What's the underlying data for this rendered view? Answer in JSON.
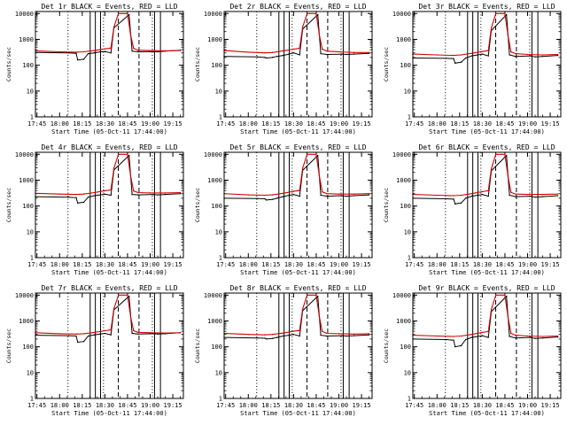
{
  "figure": {
    "background": "#ffffff",
    "axis_color": "#000000",
    "events_color": "#000000",
    "lld_color": "#d40000",
    "xlabel": "Start Time (05-Oct-11 17:44:00)",
    "ylabel": "Counts/sec"
  },
  "chart_data": [
    {
      "type": "line",
      "title": "Det 1r BLACK = Events, RED = LLD",
      "xlabel": "Start Time (05-Oct-11 17:44:00)",
      "ylabel": "Counts/sec",
      "y_scale": "log",
      "ylim": [
        1,
        12000
      ],
      "xlim": [
        "17:44",
        "19:22"
      ],
      "xticks": [
        "17:45",
        "18:00",
        "18:15",
        "18:30",
        "18:45",
        "19:00",
        "19:15"
      ],
      "yticks": [
        "1",
        "10",
        "100",
        "1000",
        "10000"
      ],
      "series": [
        {
          "name": "Events",
          "color": "#000000",
          "x": [
            "17:44",
            "18:06",
            "18:11",
            "18:12",
            "18:16",
            "18:19",
            "18:23",
            "18:27",
            "18:30",
            "18:34",
            "18:36",
            "18:46",
            "18:48",
            "18:52",
            "19:02",
            "19:05",
            "19:10",
            "19:20"
          ],
          "y": [
            310,
            300,
            290,
            160,
            170,
            280,
            300,
            330,
            340,
            300,
            2800,
            9000,
            350,
            330,
            340,
            330,
            350,
            380
          ]
        },
        {
          "name": "LLD",
          "color": "#d40000",
          "x": [
            "17:44",
            "18:00",
            "18:11",
            "18:16",
            "18:23",
            "18:30",
            "18:34",
            "18:36",
            "18:39",
            "18:45",
            "18:47",
            "18:49",
            "18:52",
            "19:00",
            "19:10",
            "19:20"
          ],
          "y": [
            360,
            330,
            320,
            330,
            370,
            430,
            460,
            3000,
            10000,
            10000,
            1500,
            450,
            380,
            370,
            360,
            370
          ]
        }
      ]
    },
    {
      "type": "line",
      "title": "Det 2r BLACK = Events, RED = LLD",
      "xlabel": "Start Time (05-Oct-11 17:44:00)",
      "ylabel": "Counts/sec",
      "y_scale": "log",
      "ylim": [
        1,
        12000
      ],
      "xlim": [
        "17:44",
        "19:22"
      ],
      "xticks": [
        "17:45",
        "18:00",
        "18:15",
        "18:30",
        "18:45",
        "19:00",
        "19:15"
      ],
      "yticks": [
        "1",
        "10",
        "100",
        "1000",
        "10000"
      ],
      "series": [
        {
          "name": "Events",
          "color": "#000000",
          "x": [
            "17:44",
            "18:06",
            "18:11",
            "18:12",
            "18:16",
            "18:19",
            "18:23",
            "18:27",
            "18:30",
            "18:34",
            "18:36",
            "18:46",
            "18:48",
            "18:52",
            "19:02",
            "19:05",
            "19:10",
            "19:20"
          ],
          "y": [
            220,
            210,
            200,
            190,
            200,
            220,
            240,
            270,
            300,
            250,
            2500,
            9000,
            280,
            260,
            270,
            260,
            270,
            290
          ]
        },
        {
          "name": "LLD",
          "color": "#d40000",
          "x": [
            "17:44",
            "18:00",
            "18:11",
            "18:16",
            "18:23",
            "18:30",
            "18:34",
            "18:36",
            "18:39",
            "18:45",
            "18:47",
            "18:49",
            "18:52",
            "19:00",
            "19:10",
            "19:20"
          ],
          "y": [
            370,
            320,
            300,
            310,
            360,
            420,
            450,
            3000,
            10000,
            10000,
            1500,
            420,
            350,
            330,
            310,
            310
          ]
        }
      ]
    },
    {
      "type": "line",
      "title": "Det 3r BLACK = Events, RED = LLD",
      "xlabel": "Start Time (05-Oct-11 17:44:00)",
      "ylabel": "Counts/sec",
      "y_scale": "log",
      "ylim": [
        1,
        12000
      ],
      "xlim": [
        "17:44",
        "19:22"
      ],
      "xticks": [
        "17:45",
        "18:00",
        "18:15",
        "18:30",
        "18:45",
        "19:00",
        "19:15"
      ],
      "yticks": [
        "1",
        "10",
        "100",
        "1000",
        "10000"
      ],
      "series": [
        {
          "name": "Events",
          "color": "#000000",
          "x": [
            "17:44",
            "18:06",
            "18:11",
            "18:12",
            "18:16",
            "18:19",
            "18:23",
            "18:27",
            "18:30",
            "18:34",
            "18:36",
            "18:46",
            "18:48",
            "18:52",
            "19:02",
            "19:05",
            "19:10",
            "19:20"
          ],
          "y": [
            190,
            185,
            180,
            120,
            130,
            190,
            230,
            250,
            270,
            230,
            2200,
            9000,
            250,
            220,
            230,
            210,
            220,
            240
          ]
        },
        {
          "name": "LLD",
          "color": "#d40000",
          "x": [
            "17:44",
            "18:00",
            "18:11",
            "18:16",
            "18:23",
            "18:30",
            "18:34",
            "18:36",
            "18:39",
            "18:45",
            "18:47",
            "18:49",
            "18:52",
            "19:00",
            "19:10",
            "19:20"
          ],
          "y": [
            270,
            250,
            240,
            250,
            290,
            340,
            370,
            2800,
            10000,
            10000,
            1400,
            330,
            280,
            260,
            250,
            260
          ]
        }
      ]
    },
    {
      "type": "line",
      "title": "Det 4r BLACK = Events, RED = LLD",
      "xlabel": "Start Time (05-Oct-11 17:44:00)",
      "ylabel": "Counts/sec",
      "y_scale": "log",
      "ylim": [
        1,
        12000
      ],
      "xlim": [
        "17:44",
        "19:22"
      ],
      "xticks": [
        "17:45",
        "18:00",
        "18:15",
        "18:30",
        "18:45",
        "19:00",
        "19:15"
      ],
      "yticks": [
        "1",
        "10",
        "100",
        "1000",
        "10000"
      ],
      "series": [
        {
          "name": "Events",
          "color": "#000000",
          "x": [
            "17:44",
            "18:06",
            "18:11",
            "18:12",
            "18:16",
            "18:19",
            "18:23",
            "18:27",
            "18:30",
            "18:34",
            "18:36",
            "18:46",
            "18:48",
            "18:52",
            "19:02",
            "19:05",
            "19:10",
            "19:20"
          ],
          "y": [
            230,
            220,
            210,
            130,
            140,
            220,
            250,
            270,
            290,
            260,
            2500,
            9000,
            280,
            270,
            280,
            270,
            280,
            300
          ]
        },
        {
          "name": "LLD",
          "color": "#d40000",
          "x": [
            "17:44",
            "18:00",
            "18:11",
            "18:16",
            "18:23",
            "18:30",
            "18:34",
            "18:36",
            "18:39",
            "18:45",
            "18:47",
            "18:49",
            "18:52",
            "19:00",
            "19:10",
            "19:20"
          ],
          "y": [
            310,
            290,
            280,
            290,
            330,
            390,
            420,
            2900,
            10000,
            10000,
            1500,
            380,
            330,
            320,
            320,
            330
          ]
        }
      ]
    },
    {
      "type": "line",
      "title": "Det 5r BLACK = Events, RED = LLD",
      "xlabel": "Start Time (05-Oct-11 17:44:00)",
      "ylabel": "Counts/sec",
      "y_scale": "log",
      "ylim": [
        1,
        12000
      ],
      "xlim": [
        "17:44",
        "19:22"
      ],
      "xticks": [
        "17:45",
        "18:00",
        "18:15",
        "18:30",
        "18:45",
        "19:00",
        "19:15"
      ],
      "yticks": [
        "1",
        "10",
        "100",
        "1000",
        "10000"
      ],
      "series": [
        {
          "name": "Events",
          "color": "#000000",
          "x": [
            "17:44",
            "18:06",
            "18:11",
            "18:12",
            "18:16",
            "18:19",
            "18:23",
            "18:27",
            "18:30",
            "18:34",
            "18:36",
            "18:46",
            "18:48",
            "18:52",
            "19:02",
            "19:05",
            "19:10",
            "19:20"
          ],
          "y": [
            200,
            195,
            190,
            170,
            180,
            200,
            230,
            260,
            280,
            240,
            2400,
            9000,
            260,
            240,
            250,
            240,
            250,
            270
          ]
        },
        {
          "name": "LLD",
          "color": "#d40000",
          "x": [
            "17:44",
            "18:00",
            "18:11",
            "18:16",
            "18:23",
            "18:30",
            "18:34",
            "18:36",
            "18:39",
            "18:45",
            "18:47",
            "18:49",
            "18:52",
            "19:00",
            "19:10",
            "19:20"
          ],
          "y": [
            300,
            270,
            260,
            270,
            310,
            370,
            400,
            2900,
            10000,
            10000,
            1500,
            350,
            300,
            290,
            290,
            300
          ]
        }
      ]
    },
    {
      "type": "line",
      "title": "Det 6r BLACK = Events, RED = LLD",
      "xlabel": "Start Time (05-Oct-11 17:44:00)",
      "ylabel": "Counts/sec",
      "y_scale": "log",
      "ylim": [
        1,
        12000
      ],
      "xlim": [
        "17:44",
        "19:22"
      ],
      "xticks": [
        "17:45",
        "18:00",
        "18:15",
        "18:30",
        "18:45",
        "19:00",
        "19:15"
      ],
      "yticks": [
        "1",
        "10",
        "100",
        "1000",
        "10000"
      ],
      "series": [
        {
          "name": "Events",
          "color": "#000000",
          "x": [
            "17:44",
            "18:06",
            "18:11",
            "18:12",
            "18:16",
            "18:19",
            "18:23",
            "18:27",
            "18:30",
            "18:34",
            "18:36",
            "18:46",
            "18:48",
            "18:52",
            "19:02",
            "19:05",
            "19:10",
            "19:20"
          ],
          "y": [
            200,
            190,
            185,
            120,
            130,
            200,
            240,
            260,
            280,
            240,
            2300,
            9000,
            260,
            230,
            240,
            220,
            230,
            250
          ]
        },
        {
          "name": "LLD",
          "color": "#d40000",
          "x": [
            "17:44",
            "18:00",
            "18:11",
            "18:16",
            "18:23",
            "18:30",
            "18:34",
            "18:36",
            "18:39",
            "18:45",
            "18:47",
            "18:49",
            "18:52",
            "19:00",
            "19:10",
            "19:20"
          ],
          "y": [
            280,
            260,
            250,
            260,
            300,
            360,
            390,
            2800,
            10000,
            10000,
            1400,
            340,
            290,
            280,
            280,
            290
          ]
        }
      ]
    },
    {
      "type": "line",
      "title": "Det 7r BLACK = Events, RED = LLD",
      "xlabel": "Start Time (05-Oct-11 17:44:00)",
      "ylabel": "Counts/sec",
      "y_scale": "log",
      "ylim": [
        1,
        12000
      ],
      "xlim": [
        "17:44",
        "19:22"
      ],
      "xticks": [
        "17:45",
        "18:00",
        "18:15",
        "18:30",
        "18:45",
        "19:00",
        "19:15"
      ],
      "yticks": [
        "1",
        "10",
        "100",
        "1000",
        "10000"
      ],
      "series": [
        {
          "name": "Events",
          "color": "#000000",
          "x": [
            "17:44",
            "18:06",
            "18:11",
            "18:12",
            "18:16",
            "18:19",
            "18:23",
            "18:27",
            "18:30",
            "18:34",
            "18:36",
            "18:46",
            "18:48",
            "18:52",
            "19:02",
            "19:05",
            "19:10",
            "19:20"
          ],
          "y": [
            280,
            270,
            260,
            150,
            160,
            260,
            290,
            310,
            330,
            290,
            2700,
            9000,
            330,
            310,
            320,
            310,
            320,
            350
          ]
        },
        {
          "name": "LLD",
          "color": "#d40000",
          "x": [
            "17:44",
            "18:00",
            "18:11",
            "18:16",
            "18:23",
            "18:30",
            "18:34",
            "18:36",
            "18:39",
            "18:45",
            "18:47",
            "18:49",
            "18:52",
            "19:00",
            "19:10",
            "19:20"
          ],
          "y": [
            350,
            320,
            310,
            320,
            360,
            420,
            450,
            3000,
            10000,
            10000,
            1500,
            420,
            360,
            350,
            340,
            350
          ]
        }
      ]
    },
    {
      "type": "line",
      "title": "Det 8r BLACK = Events, RED = LLD",
      "xlabel": "Start Time (05-Oct-11 17:44:00)",
      "ylabel": "Counts/sec",
      "y_scale": "log",
      "ylim": [
        1,
        12000
      ],
      "xlim": [
        "17:44",
        "19:22"
      ],
      "xticks": [
        "17:45",
        "18:00",
        "18:15",
        "18:30",
        "18:45",
        "19:00",
        "19:15"
      ],
      "yticks": [
        "1",
        "10",
        "100",
        "1000",
        "10000"
      ],
      "series": [
        {
          "name": "Events",
          "color": "#000000",
          "x": [
            "17:44",
            "18:06",
            "18:11",
            "18:12",
            "18:16",
            "18:19",
            "18:23",
            "18:27",
            "18:30",
            "18:34",
            "18:36",
            "18:46",
            "18:48",
            "18:52",
            "19:02",
            "19:05",
            "19:10",
            "19:20"
          ],
          "y": [
            230,
            220,
            215,
            200,
            210,
            230,
            260,
            280,
            300,
            260,
            2500,
            9000,
            280,
            260,
            270,
            260,
            270,
            290
          ]
        },
        {
          "name": "LLD",
          "color": "#d40000",
          "x": [
            "17:44",
            "18:00",
            "18:11",
            "18:16",
            "18:23",
            "18:30",
            "18:34",
            "18:36",
            "18:39",
            "18:45",
            "18:47",
            "18:49",
            "18:52",
            "19:00",
            "19:10",
            "19:20"
          ],
          "y": [
            330,
            300,
            290,
            300,
            340,
            400,
            430,
            2900,
            10000,
            10000,
            1500,
            390,
            330,
            320,
            310,
            320
          ]
        }
      ]
    },
    {
      "type": "line",
      "title": "Det 9r BLACK = Events, RED = LLD",
      "xlabel": "Start Time (05-Oct-11 17:44:00)",
      "ylabel": "Counts/sec",
      "y_scale": "log",
      "ylim": [
        1,
        12000
      ],
      "xlim": [
        "17:44",
        "19:22"
      ],
      "xticks": [
        "17:45",
        "18:00",
        "18:15",
        "18:30",
        "18:45",
        "19:00",
        "19:15"
      ],
      "yticks": [
        "1",
        "10",
        "100",
        "1000",
        "10000"
      ],
      "series": [
        {
          "name": "Events",
          "color": "#000000",
          "x": [
            "17:44",
            "18:06",
            "18:11",
            "18:12",
            "18:16",
            "18:19",
            "18:23",
            "18:27",
            "18:30",
            "18:34",
            "18:36",
            "18:46",
            "18:48",
            "18:52",
            "19:02",
            "19:05",
            "19:10",
            "19:20"
          ],
          "y": [
            200,
            190,
            180,
            100,
            110,
            190,
            230,
            250,
            270,
            230,
            2300,
            9000,
            250,
            220,
            230,
            210,
            220,
            240
          ]
        },
        {
          "name": "LLD",
          "color": "#d40000",
          "x": [
            "17:44",
            "18:00",
            "18:11",
            "18:16",
            "18:23",
            "18:30",
            "18:34",
            "18:36",
            "18:39",
            "18:45",
            "18:47",
            "18:49",
            "18:52",
            "19:00",
            "19:10",
            "19:20"
          ],
          "y": [
            280,
            260,
            250,
            260,
            300,
            360,
            390,
            2800,
            10000,
            10000,
            1400,
            330,
            280,
            260,
            250,
            260
          ]
        }
      ]
    }
  ]
}
